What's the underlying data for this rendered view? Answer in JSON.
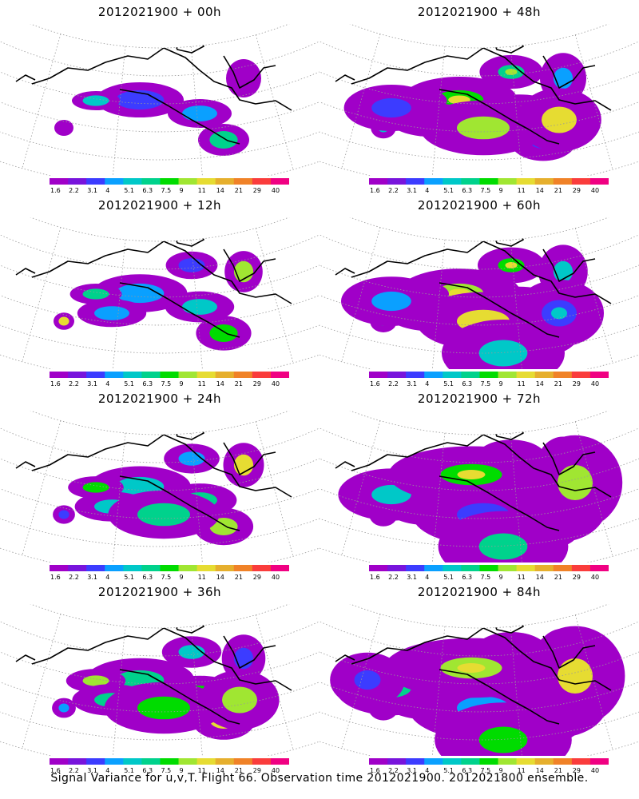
{
  "caption": "Signal Variance for u,v,T. Flight 66. Observation time 2012021900. 2012021800 ensemble.",
  "colorbar": {
    "labels": [
      "1.6",
      "2.2",
      "3.1",
      "4",
      "5.1",
      "6.3",
      "7.5",
      "9",
      "11",
      "14",
      "21",
      "29",
      "40"
    ],
    "colors": [
      "#a000c8",
      "#7814dc",
      "#3c3cff",
      "#0aa0ff",
      "#00c8c8",
      "#00d28c",
      "#00dc00",
      "#a0e632",
      "#e6dc32",
      "#e6af2d",
      "#f08228",
      "#fa3c3c",
      "#f00082"
    ]
  },
  "panels": [
    {
      "title": "2012021900 + 00h",
      "lead_hours": 0
    },
    {
      "title": "2012021900 + 48h",
      "lead_hours": 48
    },
    {
      "title": "2012021900 + 12h",
      "lead_hours": 12
    },
    {
      "title": "2012021900 + 60h",
      "lead_hours": 60
    },
    {
      "title": "2012021900 + 24h",
      "lead_hours": 24
    },
    {
      "title": "2012021900 + 72h",
      "lead_hours": 72
    },
    {
      "title": "2012021900 + 36h",
      "lead_hours": 36
    },
    {
      "title": "2012021900 + 84h",
      "lead_hours": 84
    }
  ]
}
